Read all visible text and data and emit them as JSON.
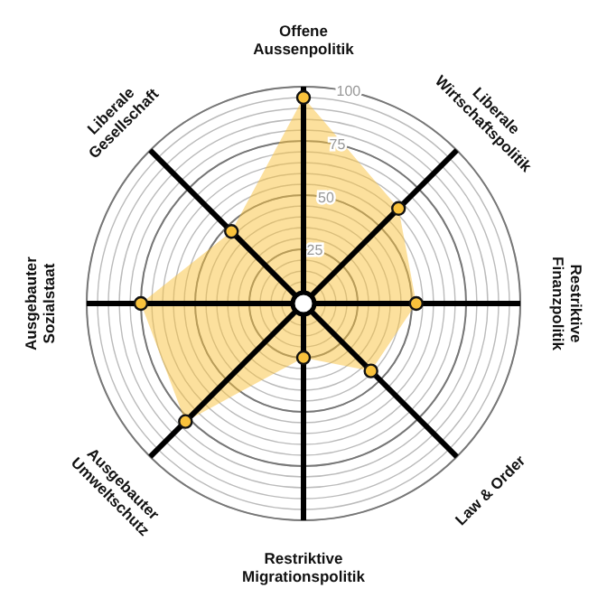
{
  "chart_data": {
    "type": "radar",
    "categories": [
      "Offene Aussenpolitik",
      "Liberale Wirtschaftspolitik",
      "Restriktive Finanzpolitik",
      "Law & Order",
      "Restriktive Migrationspolitik",
      "Ausgebauter Umweltschutz",
      "Ausgebauter Sozialstaat",
      "Liberale Gesellschaft"
    ],
    "series": [
      {
        "color": "#f9c23c",
        "values": [
          95,
          62,
          52,
          44,
          25,
          77,
          75,
          47
        ]
      }
    ],
    "ylim": [
      0,
      100
    ],
    "yticks": [
      25,
      50,
      75,
      100
    ],
    "grid": true,
    "legend": false,
    "marker": "circle"
  }
}
